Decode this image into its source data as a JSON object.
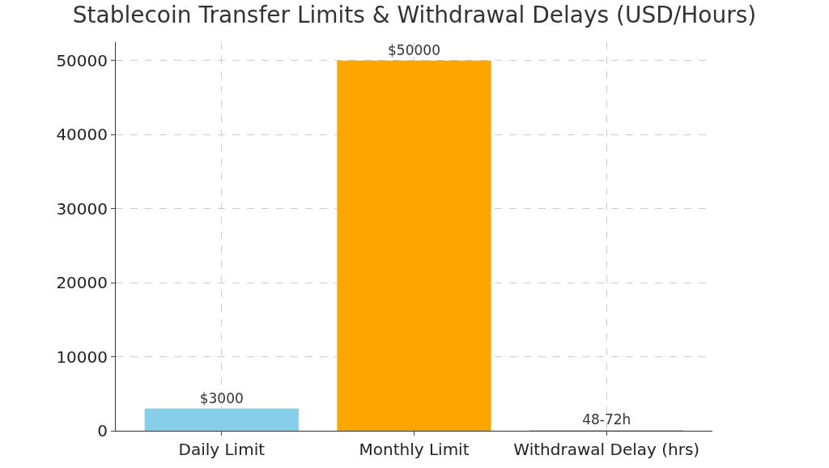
{
  "chart_data": {
    "type": "bar",
    "title": "Stablecoin Transfer Limits & Withdrawal Delays (USD/Hours)",
    "categories": [
      "Daily Limit",
      "Monthly Limit",
      "Withdrawal Delay (hrs)"
    ],
    "values": [
      3000,
      50000,
      60
    ],
    "value_labels": [
      "$3000",
      "$50000",
      "48-72h"
    ],
    "colors": [
      "#87ceeb",
      "#ffa500",
      "#90ee90"
    ],
    "ylim": [
      0,
      52500
    ],
    "yticks": [
      0,
      10000,
      20000,
      30000,
      40000,
      50000
    ],
    "grid": true
  }
}
